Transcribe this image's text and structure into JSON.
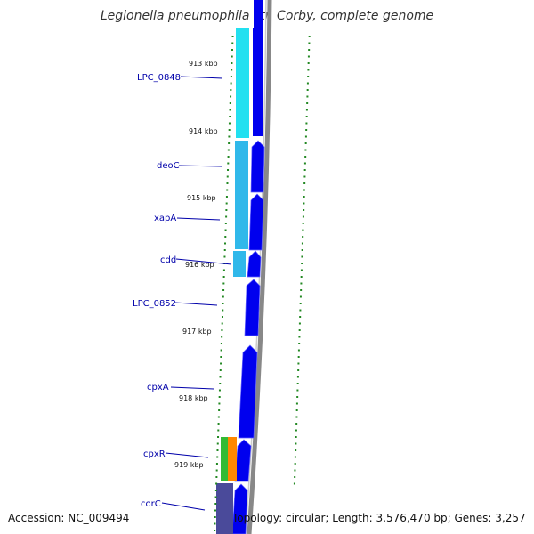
{
  "title": "Legionella pneumophila str. Corby, complete genome",
  "accession_label": "Accession: NC_009494",
  "summary_label": "Topology: circular; Length: 3,576,470 bp; Genes: 3,257",
  "kbp_ticks": [
    "913 kbp",
    "914 kbp",
    "915 kbp",
    "916 kbp",
    "917 kbp",
    "918 kbp",
    "919 kbp"
  ],
  "genes": [
    "LPC_0848",
    "deoC",
    "xapA",
    "cdd",
    "LPC_0852",
    "cpxA",
    "cpxR",
    "corC"
  ],
  "colors": {
    "forward_strand": "#0000ee",
    "cog_cyan": "#22e0f0",
    "cog_lightblue": "#30b8ea",
    "cog_green": "#33bb33",
    "cog_orange": "#ff8800",
    "cog_purple": "#4a4a9a",
    "backbone": "#888888",
    "tick_green": "#228822",
    "gene_label": "#0000aa"
  }
}
